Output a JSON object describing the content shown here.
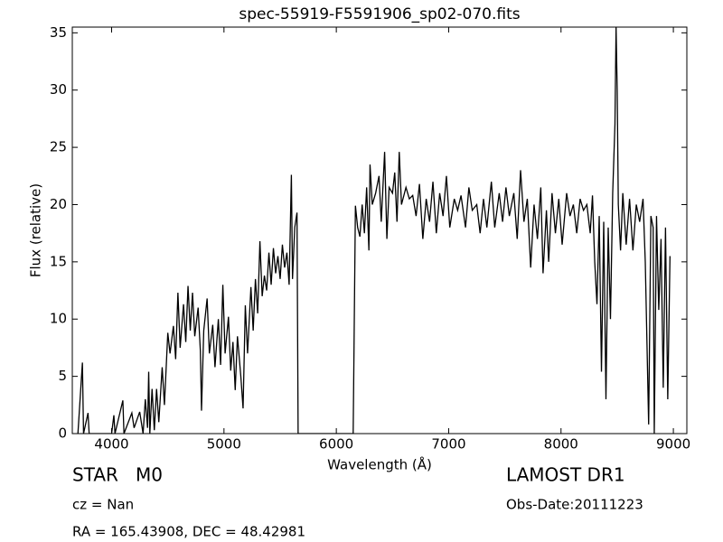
{
  "chart_data": {
    "type": "line",
    "title": "spec-55919-F5591906_sp02-070.fits",
    "x_label": "Wavelength (Å)",
    "y_label": "Flux (relative)",
    "object_class": "STAR   M0",
    "redshift": "cz = Nan",
    "coordinates": "RA = 165.43908, DEC = 48.42981",
    "survey": "LAMOST DR1",
    "obs_date": "Obs-Date:20111223",
    "color": "#000000",
    "xlim": [
      3650,
      9120
    ],
    "ylim": [
      0,
      35.5
    ],
    "xticks": [
      4000,
      5000,
      6000,
      7000,
      8000,
      9000
    ],
    "yticks": [
      0,
      5,
      10,
      15,
      20,
      25,
      30,
      35
    ],
    "x": [
      3700,
      3740,
      3750,
      3790,
      3800,
      4000,
      4020,
      4030,
      4100,
      4110,
      4180,
      4200,
      4250,
      4280,
      4300,
      4320,
      4330,
      4340,
      4360,
      4380,
      4400,
      4420,
      4450,
      4470,
      4500,
      4520,
      4550,
      4570,
      4590,
      4610,
      4640,
      4660,
      4680,
      4700,
      4720,
      4740,
      4770,
      4790,
      4800,
      4820,
      4850,
      4870,
      4900,
      4920,
      4950,
      4970,
      4990,
      5010,
      5040,
      5060,
      5080,
      5100,
      5120,
      5150,
      5170,
      5190,
      5210,
      5240,
      5260,
      5280,
      5300,
      5320,
      5340,
      5360,
      5380,
      5400,
      5420,
      5440,
      5460,
      5480,
      5500,
      5520,
      5540,
      5560,
      5580,
      5600,
      5610,
      5630,
      5650,
      5660,
      6150,
      6170,
      6190,
      6210,
      6230,
      6250,
      6270,
      6290,
      6300,
      6320,
      6350,
      6380,
      6400,
      6430,
      6450,
      6470,
      6500,
      6520,
      6540,
      6560,
      6580,
      6620,
      6650,
      6680,
      6710,
      6740,
      6770,
      6800,
      6830,
      6860,
      6890,
      6920,
      6950,
      6980,
      7010,
      7050,
      7080,
      7110,
      7150,
      7180,
      7210,
      7250,
      7280,
      7310,
      7340,
      7380,
      7410,
      7450,
      7480,
      7510,
      7540,
      7580,
      7610,
      7640,
      7670,
      7700,
      7730,
      7760,
      7790,
      7820,
      7840,
      7870,
      7890,
      7920,
      7950,
      7980,
      8010,
      8050,
      8080,
      8110,
      8140,
      8170,
      8200,
      8230,
      8260,
      8280,
      8300,
      8320,
      8340,
      8360,
      8380,
      8400,
      8420,
      8440,
      8460,
      8480,
      8490,
      8500,
      8510,
      8530,
      8550,
      8580,
      8610,
      8640,
      8670,
      8700,
      8730,
      8750,
      8780,
      8800,
      8820,
      8830,
      8850,
      8870,
      8890,
      8910,
      8930,
      8950,
      8970
    ],
    "values": [
      0,
      6.2,
      0,
      1.8,
      0,
      0,
      1.6,
      0,
      2.9,
      0,
      1.8,
      0.5,
      1.9,
      0,
      3.0,
      0.5,
      5.4,
      0,
      3.9,
      0.3,
      3.9,
      1.0,
      5.8,
      2.5,
      8.8,
      7.0,
      9.4,
      6.5,
      12.3,
      7.5,
      11.3,
      8.0,
      12.9,
      9.0,
      12.3,
      8.5,
      11.0,
      7.2,
      2.0,
      9.0,
      11.8,
      7.0,
      9.5,
      5.8,
      10.0,
      6.0,
      13.0,
      7.0,
      10.2,
      5.5,
      8.0,
      3.8,
      8.5,
      5.0,
      2.2,
      11.2,
      7.0,
      12.8,
      9.0,
      13.5,
      10.5,
      16.8,
      12.0,
      13.8,
      12.5,
      15.8,
      13.0,
      16.2,
      14.0,
      15.5,
      13.5,
      16.5,
      14.5,
      15.8,
      13.0,
      22.6,
      13.5,
      18.0,
      19.3,
      0,
      0,
      19.9,
      18.0,
      17.2,
      20.0,
      17.5,
      21.5,
      16.0,
      23.5,
      20.0,
      21.0,
      22.5,
      18.5,
      24.6,
      17.0,
      21.5,
      21.0,
      22.8,
      18.5,
      24.6,
      20.0,
      21.5,
      20.5,
      20.8,
      19.0,
      21.8,
      17.0,
      20.5,
      18.5,
      22.0,
      17.5,
      21.0,
      19.0,
      22.5,
      18.0,
      20.5,
      19.5,
      20.8,
      18.0,
      21.5,
      19.5,
      20.0,
      17.5,
      20.5,
      18.0,
      22.0,
      18.0,
      21.0,
      18.5,
      21.5,
      19.0,
      21.0,
      17.0,
      23.0,
      18.5,
      20.5,
      14.5,
      20.0,
      17.0,
      21.5,
      14.0,
      19.5,
      15.0,
      21.0,
      17.5,
      20.5,
      16.5,
      21.0,
      19.0,
      20.0,
      17.5,
      20.5,
      19.5,
      20.0,
      17.5,
      20.8,
      15.0,
      11.3,
      19.0,
      5.4,
      18.5,
      3.0,
      18.0,
      10.0,
      21.0,
      27.0,
      35.5,
      30.0,
      20.0,
      16.0,
      21.0,
      16.5,
      20.5,
      16.0,
      20.0,
      18.5,
      20.5,
      15.0,
      0.8,
      19.0,
      18.0,
      0,
      19.0,
      10.8,
      17.0,
      4.0,
      18.0,
      3.0,
      15.5
    ]
  }
}
